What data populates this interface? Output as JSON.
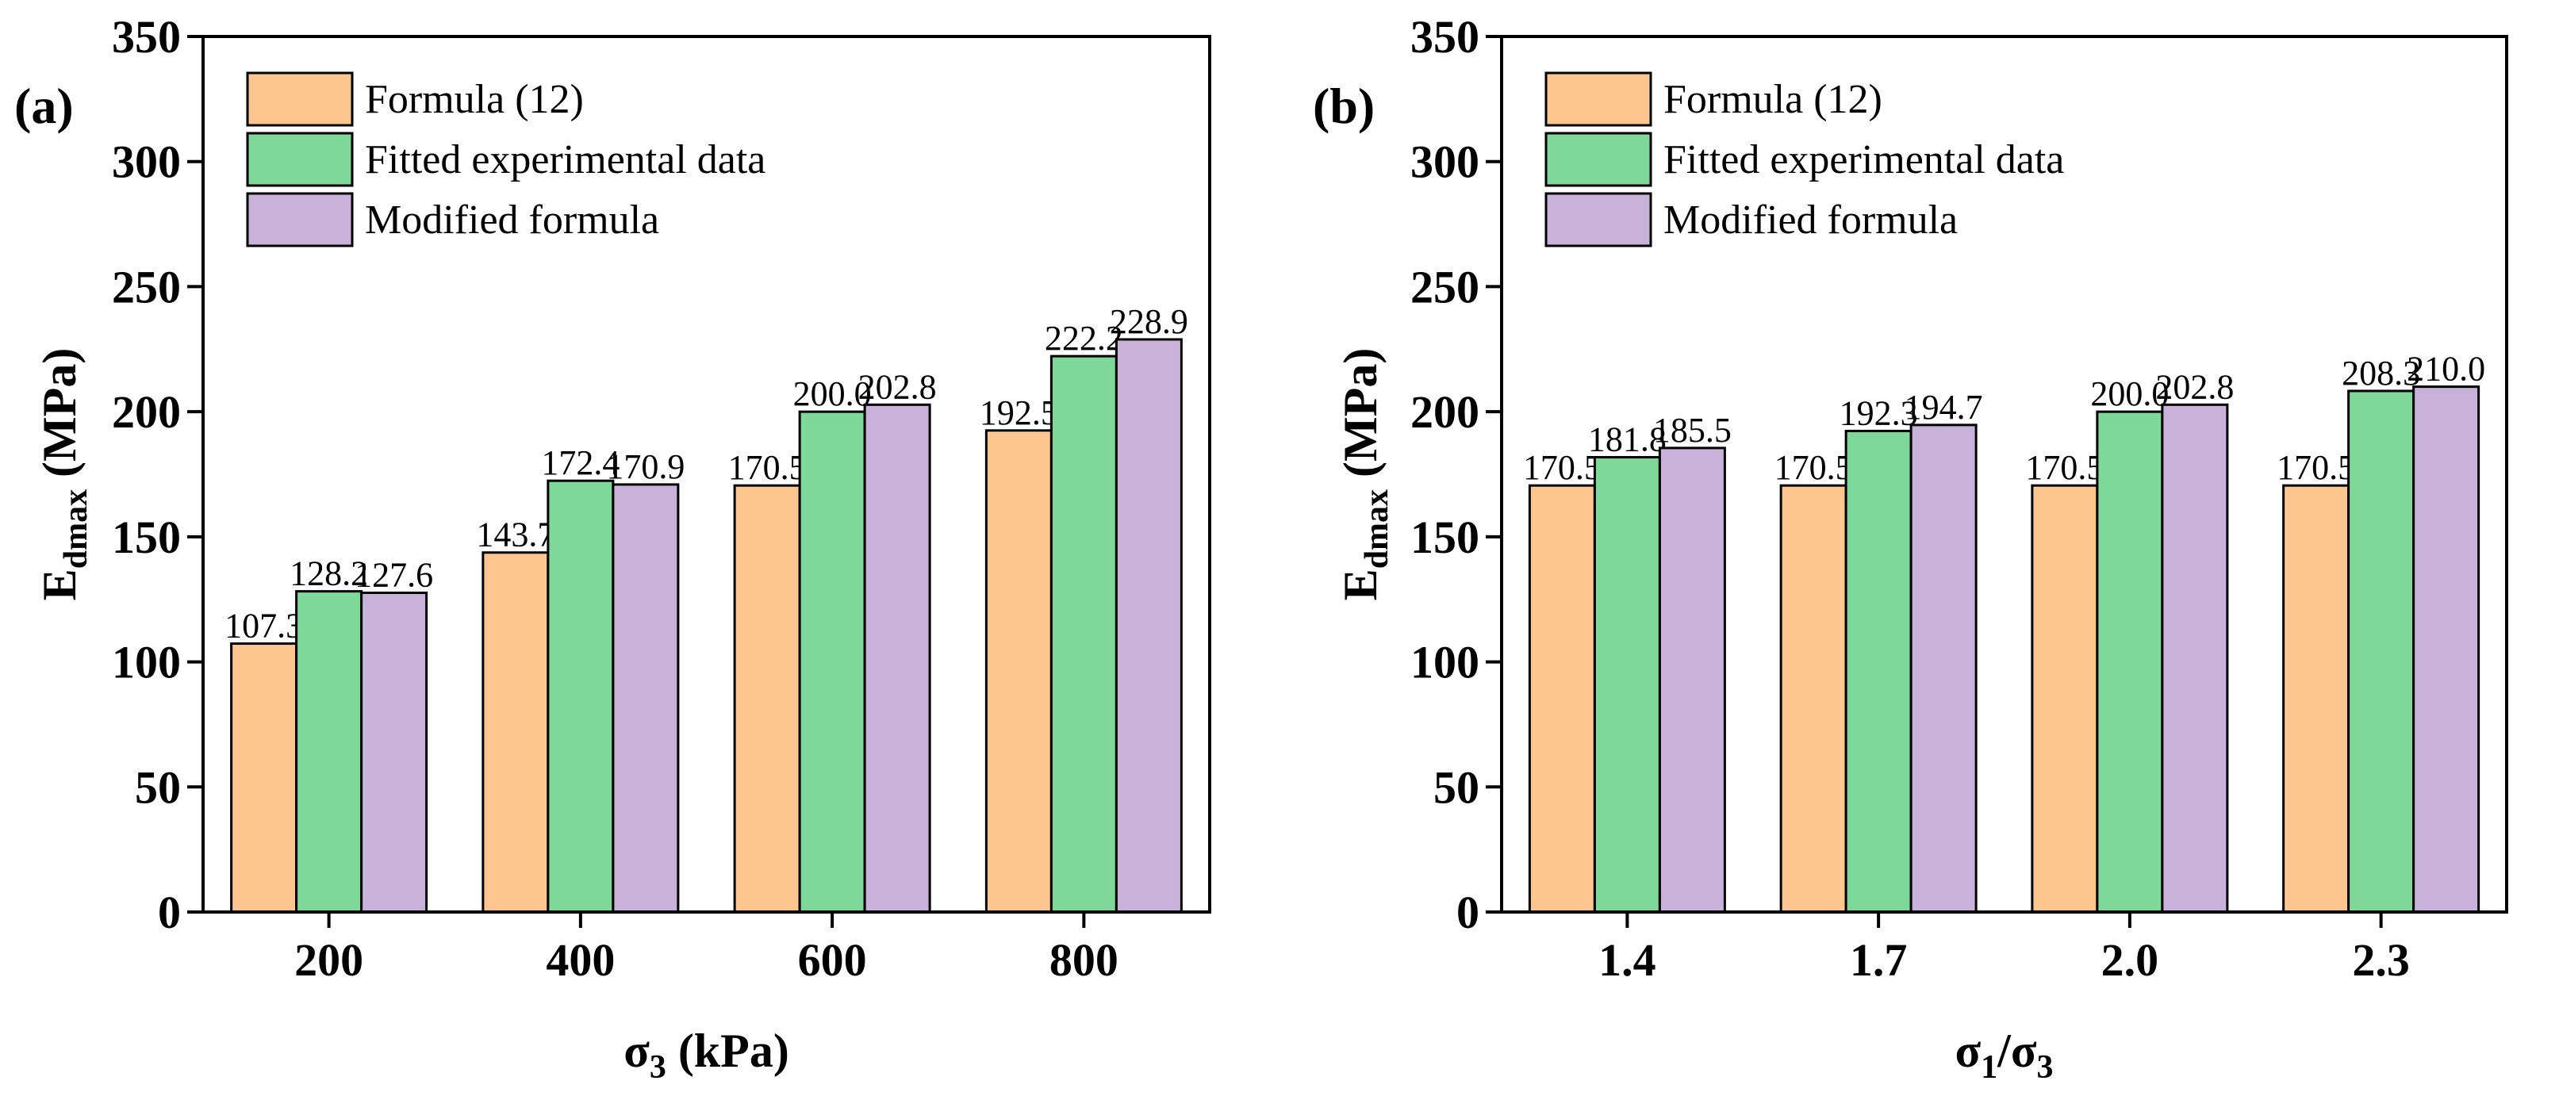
{
  "chart_data": [
    {
      "type": "bar",
      "panel_label": "(a)",
      "categories": [
        "200",
        "400",
        "600",
        "800"
      ],
      "series": [
        {
          "name": "Formula (12)",
          "color": "#FDC590",
          "values": [
            107.3,
            143.7,
            170.5,
            192.5
          ],
          "labels": [
            "107.3",
            "143.7",
            "170.5",
            "192.5"
          ]
        },
        {
          "name": "Fitted experimental data",
          "color": "#7DD89A",
          "values": [
            128.2,
            172.4,
            200.0,
            222.2
          ],
          "labels": [
            "128.2",
            "172.4",
            "200.0",
            "222.2"
          ]
        },
        {
          "name": "Modified formula",
          "color": "#C8B2DA",
          "values": [
            127.6,
            170.9,
            202.8,
            228.9
          ],
          "labels": [
            "127.6",
            "170.9",
            "202.8",
            "228.9"
          ]
        }
      ],
      "xlabel": {
        "main": "σ",
        "sub": "3",
        "tail": " (kPa)"
      },
      "ylabel": {
        "main": "E",
        "sub": "dmax",
        "tail": " (MPa)"
      },
      "ylim": [
        0,
        350
      ],
      "yticks": [
        "0",
        "50",
        "100",
        "150",
        "200",
        "250",
        "300",
        "350"
      ],
      "legend_position": "top-left"
    },
    {
      "type": "bar",
      "panel_label": "(b)",
      "categories": [
        "1.4",
        "1.7",
        "2.0",
        "2.3"
      ],
      "series": [
        {
          "name": "Formula (12)",
          "color": "#FDC590",
          "values": [
            170.5,
            170.5,
            170.5,
            170.5
          ],
          "labels": [
            "170.5",
            "170.5",
            "170.5",
            "170.5"
          ]
        },
        {
          "name": "Fitted experimental data",
          "color": "#7DD89A",
          "values": [
            181.8,
            192.3,
            200.0,
            208.3
          ],
          "labels": [
            "181.8",
            "192.3",
            "200.0",
            "208.3"
          ]
        },
        {
          "name": "Modified formula",
          "color": "#C8B2DA",
          "values": [
            185.5,
            194.7,
            202.8,
            210.0
          ],
          "labels": [
            "185.5",
            "194.7",
            "202.8",
            "210.0"
          ]
        }
      ],
      "xlabel": {
        "main": "σ",
        "sub": "1",
        "mid": "/σ",
        "sub2": "3",
        "tail": ""
      },
      "ylabel": {
        "main": "E",
        "sub": "dmax",
        "tail": " (MPa)"
      },
      "ylim": [
        0,
        350
      ],
      "yticks": [
        "0",
        "50",
        "100",
        "150",
        "200",
        "250",
        "300",
        "350"
      ],
      "legend_position": "top-left"
    }
  ]
}
